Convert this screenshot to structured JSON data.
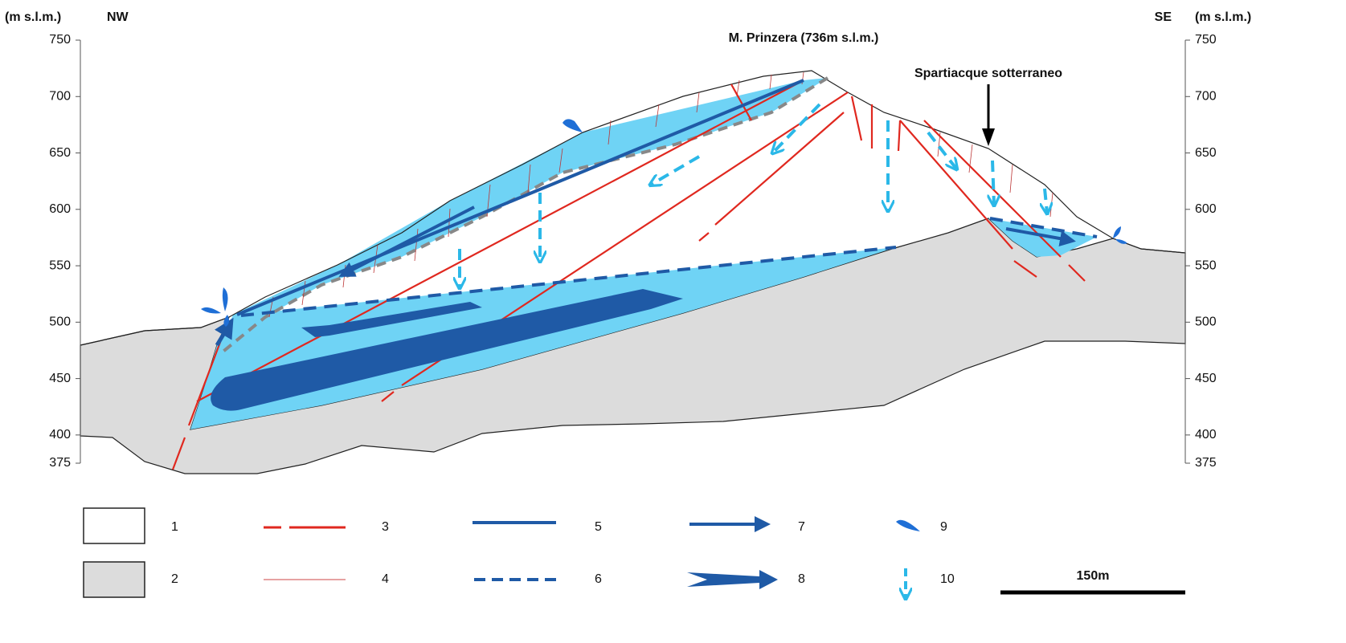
{
  "axis": {
    "unit_left": "(m s.l.m.)",
    "unit_right": "(m s.l.m.)",
    "ylim": [
      375,
      750
    ],
    "yticks": [
      750,
      700,
      650,
      600,
      550,
      500,
      450,
      400,
      375
    ]
  },
  "labels": {
    "nw": "NW",
    "se": "SE",
    "peak": "M. Prinzera (736m s.l.m.)",
    "divide": "Spartiacque sotterraneo",
    "scale": "150m"
  },
  "legend": {
    "items": [
      "1",
      "2",
      "3",
      "4",
      "5",
      "6",
      "7",
      "8",
      "9",
      "10"
    ]
  }
}
